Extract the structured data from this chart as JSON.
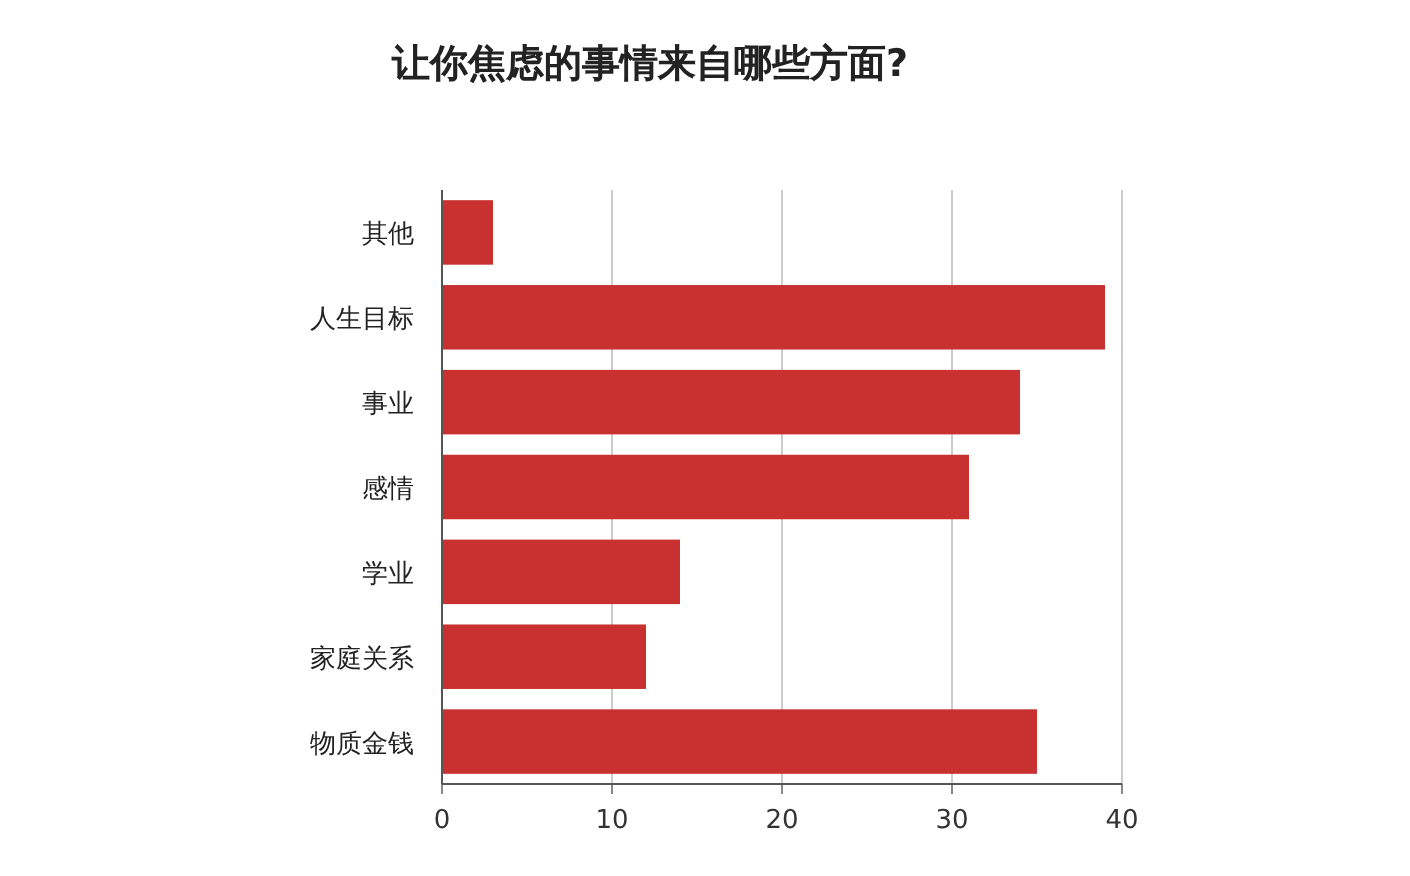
{
  "chart_data": {
    "type": "bar",
    "orientation": "horizontal",
    "title": "让你焦虑的事情来自哪些方面?",
    "categories": [
      "其他",
      "人生目标",
      "事业",
      "感情",
      "学业",
      "家庭关系",
      "物质金钱"
    ],
    "values": [
      3,
      39,
      34,
      31,
      14,
      12,
      35
    ],
    "color": "#c8312f",
    "xlim": [
      0,
      40
    ],
    "xticks": [
      0,
      10,
      20,
      30,
      40
    ],
    "grid": "x"
  }
}
